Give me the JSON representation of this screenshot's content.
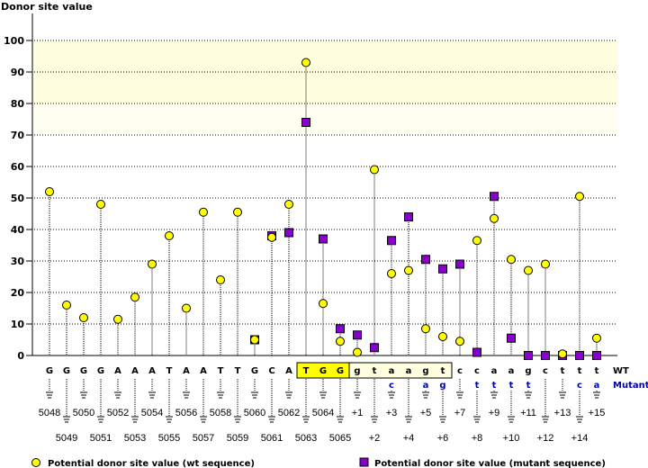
{
  "chart_data": {
    "type": "lollipop",
    "ylabel": "Donor site value",
    "ylim": [
      0,
      100
    ],
    "yticks": [
      0,
      10,
      20,
      30,
      40,
      50,
      60,
      70,
      80,
      90,
      100
    ],
    "grid": true,
    "highlight_bands": [
      {
        "from": 80,
        "to": 100,
        "style": "solid",
        "color": "#FFFFE0"
      },
      {
        "from": 70,
        "to": 80,
        "style": "dithered",
        "color": "#FFFFEE"
      }
    ],
    "positions": [
      "5048",
      "5049",
      "5050",
      "5051",
      "5052",
      "5053",
      "5054",
      "5055",
      "5056",
      "5057",
      "5058",
      "5059",
      "5060",
      "5061",
      "5062",
      "5063",
      "5064",
      "5065",
      "+1",
      "+2",
      "+3",
      "+4",
      "+5",
      "+6",
      "+7",
      "+8",
      "+9",
      "+10",
      "+11",
      "+12",
      "+13",
      "+14",
      "+15"
    ],
    "wt_bases": [
      "G",
      "G",
      "G",
      "G",
      "A",
      "A",
      "A",
      "T",
      "A",
      "A",
      "T",
      "T",
      "G",
      "C",
      "A",
      "T",
      "G",
      "G",
      "g",
      "t",
      "a",
      "a",
      "g",
      "t",
      "c",
      "c",
      "a",
      "a",
      "g",
      "c",
      "t",
      "t",
      "t"
    ],
    "mutant_bases": [
      "",
      "",
      "",
      "",
      "",
      "",
      "",
      "",
      "",
      "",
      "",
      "",
      "",
      "",
      "",
      "",
      "",
      "",
      "",
      "",
      "c",
      "",
      "a",
      "g",
      "",
      "t",
      "t",
      "t",
      "t",
      "",
      "",
      "c",
      "a"
    ],
    "exon_box_positions": [
      "5063",
      "5064",
      "5065"
    ],
    "intron_box_positions": [
      "+1",
      "+2",
      "+3",
      "+4",
      "+5",
      "+6"
    ],
    "row_labels": {
      "wt": "WT",
      "mutant": "Mutant"
    },
    "series": [
      {
        "name": "Potential donor site value (wt sequence)",
        "marker": "circle",
        "color": "#FFFF00",
        "values": [
          52,
          16,
          12,
          48,
          11.5,
          18.5,
          29,
          38,
          15,
          45.5,
          24,
          45.5,
          5,
          37.5,
          48,
          93,
          16.5,
          4.5,
          1,
          59,
          26,
          27,
          8.5,
          6,
          4.5,
          36.5,
          43.5,
          30.5,
          27,
          29,
          0.5,
          50.5,
          5.5
        ]
      },
      {
        "name": "Potential donor site value (mutant sequence)",
        "marker": "square",
        "color": "#8800CC",
        "values": [
          null,
          null,
          null,
          null,
          null,
          null,
          null,
          null,
          null,
          null,
          null,
          null,
          5,
          38,
          39,
          74,
          37,
          8.5,
          6.5,
          2.5,
          36.5,
          44,
          30.5,
          27.5,
          29,
          1,
          50.5,
          5.5,
          0,
          0,
          0,
          0,
          0
        ]
      }
    ],
    "legend": [
      {
        "label": "Potential donor site value (wt sequence)",
        "marker": "circle"
      },
      {
        "label": "Potential donor site value (mutant sequence)",
        "marker": "square"
      }
    ]
  }
}
